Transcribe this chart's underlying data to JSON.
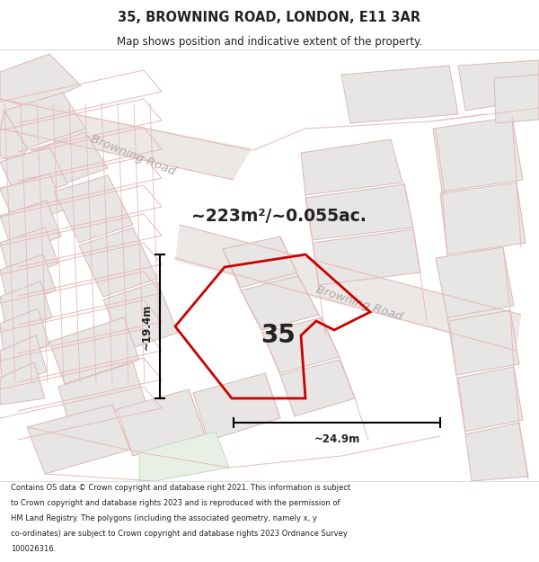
{
  "title": "35, BROWNING ROAD, LONDON, E11 3AR",
  "subtitle": "Map shows position and indicative extent of the property.",
  "area_text": "~223m²/~0.055ac.",
  "width_label": "~24.9m",
  "height_label": "~19.4m",
  "number_label": "35",
  "footer_text": "Contains OS data © Crown copyright and database right 2021. This information is subject to Crown copyright and database rights 2023 and is reproduced with the permission of HM Land Registry. The polygons (including the associated geometry, namely x, y co-ordinates) are subject to Crown copyright and database rights 2023 Ordnance Survey 100026316.",
  "map_bg": "#f7f6f4",
  "road_line_color": "#e8b8b8",
  "road_fill_color": "#f0ecec",
  "property_color": "#cc0000",
  "block_fill": "#e8e6e4",
  "block_edge": "#d8b8b8",
  "road_label_color": "#b0aaaa",
  "header_bg": "#ffffff",
  "footer_bg": "#ffffff",
  "text_color": "#222222"
}
